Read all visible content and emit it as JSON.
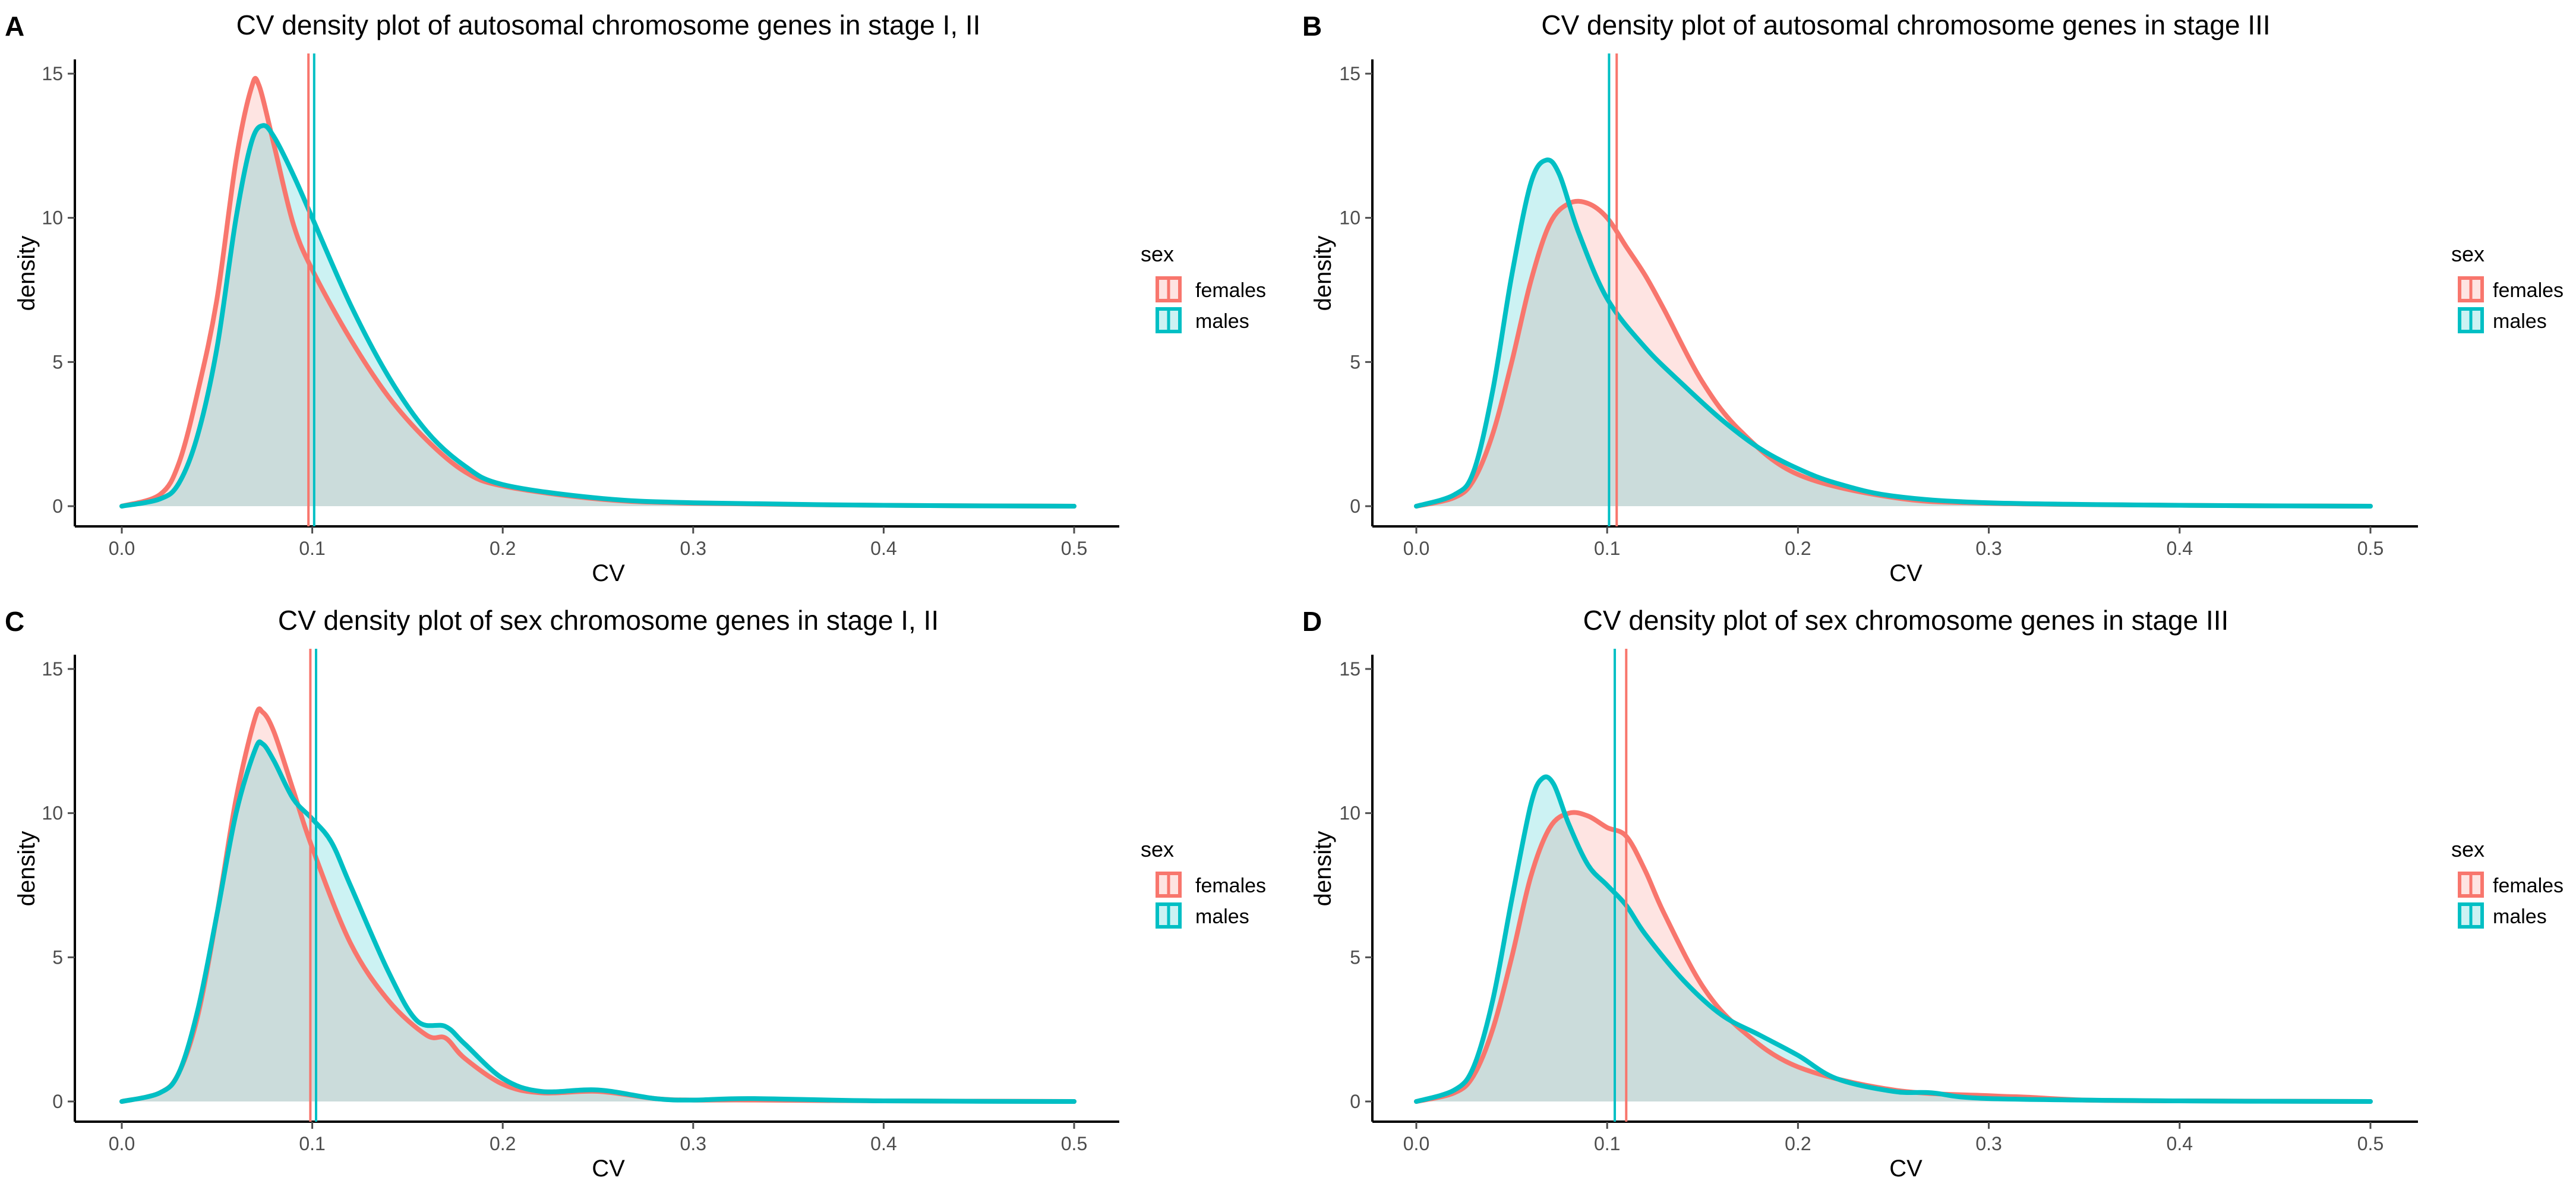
{
  "figure": {
    "legend_title": "sex",
    "colors": {
      "females": "#F8766D",
      "males": "#00BFC4",
      "axis": "#000000",
      "tick_text": "#4d4d4d"
    }
  },
  "chart_data": [
    {
      "type": "area",
      "panel": "A",
      "title": "CV density plot of autosomal chromosome genes in stage I, II",
      "xlabel": "CV",
      "ylabel": "density",
      "xlim": [
        0,
        0.5
      ],
      "ylim": [
        0,
        15
      ],
      "x_ticks": [
        "0.0",
        "0.1",
        "0.2",
        "0.3",
        "0.4",
        "0.5"
      ],
      "y_ticks": [
        "0",
        "5",
        "10",
        "15"
      ],
      "legend": [
        "females",
        "males"
      ],
      "vlines": {
        "females": 0.098,
        "males": 0.101
      },
      "series": [
        {
          "name": "females",
          "x": [
            0,
            0.02,
            0.03,
            0.04,
            0.05,
            0.06,
            0.068,
            0.072,
            0.08,
            0.09,
            0.1,
            0.12,
            0.14,
            0.16,
            0.18,
            0.2,
            0.25,
            0.3,
            0.4,
            0.5
          ],
          "values": [
            0,
            0.4,
            1.5,
            4,
            7.2,
            12,
            14.5,
            14.6,
            12.5,
            9.8,
            8.2,
            5.8,
            3.8,
            2.3,
            1.2,
            0.7,
            0.25,
            0.1,
            0.03,
            0
          ]
        },
        {
          "name": "males",
          "x": [
            0,
            0.02,
            0.03,
            0.04,
            0.05,
            0.06,
            0.068,
            0.074,
            0.08,
            0.09,
            0.1,
            0.12,
            0.14,
            0.16,
            0.18,
            0.2,
            0.25,
            0.3,
            0.4,
            0.5
          ],
          "values": [
            0,
            0.25,
            0.8,
            2.5,
            5.5,
            10,
            12.6,
            13.2,
            12.8,
            11.5,
            10,
            7,
            4.5,
            2.6,
            1.4,
            0.75,
            0.28,
            0.12,
            0.03,
            0
          ]
        }
      ]
    },
    {
      "type": "area",
      "panel": "B",
      "title": "CV density plot of autosomal chromosome genes in stage III",
      "xlabel": "CV",
      "ylabel": "density",
      "xlim": [
        0,
        0.5
      ],
      "ylim": [
        0,
        15
      ],
      "x_ticks": [
        "0.0",
        "0.1",
        "0.2",
        "0.3",
        "0.4",
        "0.5"
      ],
      "y_ticks": [
        "0",
        "5",
        "10",
        "15"
      ],
      "legend": [
        "females",
        "males"
      ],
      "vlines": {
        "females": 0.105,
        "males": 0.101
      },
      "series": [
        {
          "name": "females",
          "x": [
            0,
            0.02,
            0.03,
            0.04,
            0.05,
            0.06,
            0.07,
            0.08,
            0.09,
            0.1,
            0.11,
            0.12,
            0.13,
            0.15,
            0.17,
            0.2,
            0.25,
            0.3,
            0.4,
            0.5
          ],
          "values": [
            0,
            0.3,
            0.9,
            2.5,
            5,
            7.8,
            9.8,
            10.5,
            10.5,
            10,
            9,
            8,
            6.8,
            4.3,
            2.6,
            1.1,
            0.3,
            0.1,
            0.03,
            0
          ]
        },
        {
          "name": "males",
          "x": [
            0,
            0.02,
            0.03,
            0.04,
            0.05,
            0.06,
            0.068,
            0.075,
            0.085,
            0.1,
            0.12,
            0.14,
            0.16,
            0.18,
            0.2,
            0.22,
            0.25,
            0.3,
            0.4,
            0.5
          ],
          "values": [
            0,
            0.4,
            1.2,
            4,
            8,
            11.2,
            12,
            11.5,
            9.5,
            7.2,
            5.5,
            4.2,
            3,
            2,
            1.3,
            0.8,
            0.35,
            0.12,
            0.03,
            0
          ]
        }
      ]
    },
    {
      "type": "area",
      "panel": "C",
      "title": "CV density plot of sex chromosome genes in stage I, II",
      "xlabel": "CV",
      "ylabel": "density",
      "xlim": [
        0,
        0.5
      ],
      "ylim": [
        0,
        15
      ],
      "x_ticks": [
        "0.0",
        "0.1",
        "0.2",
        "0.3",
        "0.4",
        "0.5"
      ],
      "y_ticks": [
        "0",
        "5",
        "10",
        "15"
      ],
      "legend": [
        "females",
        "males"
      ],
      "vlines": {
        "females": 0.099,
        "males": 0.102
      },
      "series": [
        {
          "name": "females",
          "x": [
            0,
            0.02,
            0.03,
            0.04,
            0.05,
            0.06,
            0.07,
            0.074,
            0.08,
            0.09,
            0.1,
            0.12,
            0.14,
            0.16,
            0.17,
            0.18,
            0.2,
            0.22,
            0.25,
            0.28,
            0.3,
            0.33,
            0.4,
            0.5
          ],
          "values": [
            0,
            0.3,
            1,
            3,
            6.5,
            10.5,
            13.3,
            13.5,
            12.8,
            10.8,
            8.8,
            5.5,
            3.5,
            2.3,
            2.2,
            1.5,
            0.6,
            0.3,
            0.35,
            0.1,
            0.05,
            0.05,
            0.02,
            0
          ]
        },
        {
          "name": "males",
          "x": [
            0,
            0.02,
            0.03,
            0.04,
            0.05,
            0.06,
            0.07,
            0.074,
            0.08,
            0.09,
            0.1,
            0.11,
            0.12,
            0.14,
            0.155,
            0.17,
            0.18,
            0.2,
            0.22,
            0.25,
            0.28,
            0.3,
            0.33,
            0.4,
            0.5
          ],
          "values": [
            0,
            0.3,
            1,
            3.2,
            6.5,
            10,
            12.2,
            12.4,
            11.8,
            10.5,
            9.8,
            9,
            7.5,
            4.5,
            2.8,
            2.6,
            2,
            0.8,
            0.35,
            0.4,
            0.1,
            0.05,
            0.1,
            0.02,
            0
          ]
        }
      ]
    },
    {
      "type": "area",
      "panel": "D",
      "title": "CV density plot of sex chromosome genes in stage III",
      "xlabel": "CV",
      "ylabel": "density",
      "xlim": [
        0,
        0.5
      ],
      "ylim": [
        0,
        15
      ],
      "x_ticks": [
        "0.0",
        "0.1",
        "0.2",
        "0.3",
        "0.4",
        "0.5"
      ],
      "y_ticks": [
        "0",
        "5",
        "10",
        "15"
      ],
      "legend": [
        "females",
        "males"
      ],
      "vlines": {
        "females": 0.11,
        "males": 0.104
      },
      "series": [
        {
          "name": "females",
          "x": [
            0,
            0.02,
            0.03,
            0.04,
            0.05,
            0.06,
            0.07,
            0.08,
            0.09,
            0.1,
            0.11,
            0.12,
            0.13,
            0.15,
            0.17,
            0.2,
            0.25,
            0.3,
            0.32,
            0.35,
            0.4,
            0.5
          ],
          "values": [
            0,
            0.3,
            0.9,
            2.5,
            5,
            7.8,
            9.5,
            10,
            9.9,
            9.5,
            9.2,
            8,
            6.5,
            4,
            2.5,
            1.2,
            0.4,
            0.2,
            0.15,
            0.05,
            0.02,
            0
          ]
        },
        {
          "name": "males",
          "x": [
            0,
            0.02,
            0.03,
            0.04,
            0.05,
            0.06,
            0.066,
            0.072,
            0.08,
            0.09,
            0.1,
            0.11,
            0.12,
            0.14,
            0.16,
            0.18,
            0.2,
            0.22,
            0.25,
            0.27,
            0.3,
            0.4,
            0.5
          ],
          "values": [
            0,
            0.4,
            1.2,
            3.5,
            7,
            10.3,
            11.2,
            11,
            9.6,
            8.2,
            7.5,
            6.8,
            5.8,
            4.2,
            3,
            2.3,
            1.6,
            0.8,
            0.35,
            0.3,
            0.1,
            0.02,
            0
          ]
        }
      ]
    }
  ]
}
